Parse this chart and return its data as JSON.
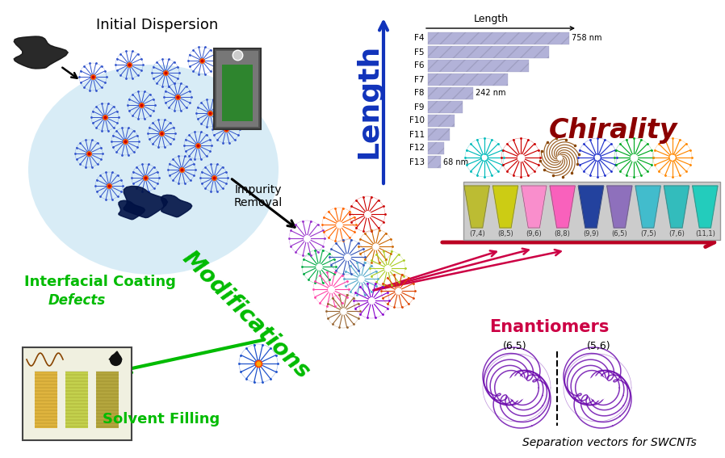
{
  "title": "Separation vectors for SWCNTs",
  "bg_color": "#ffffff",
  "length_label": "Length",
  "length_axis_label": "Length",
  "fractions": [
    "F4",
    "F5",
    "F6",
    "F7",
    "F8",
    "F9",
    "F10",
    "F11",
    "F12",
    "F13"
  ],
  "fraction_lengths": [
    758,
    650,
    540,
    430,
    242,
    185,
    145,
    115,
    88,
    68
  ],
  "fraction_annotations": {
    "F4": "758 nm",
    "F8": "242 nm",
    "F13": "68 nm"
  },
  "chirality_label": "Chirality",
  "chirality_color": "#8B0000",
  "chirality_species": [
    "(7,4)",
    "(8,5)",
    "(9,6)",
    "(8,8)",
    "(9,9)",
    "(6,5)",
    "(7,5)",
    "(7,6)",
    "(11,1)"
  ],
  "initial_dispersion_label": "Initial Dispersion",
  "impurity_removal_label": "Impurity\nRemoval",
  "modifications_label": "Modifications",
  "modifications_color": "#00BB00",
  "interfacial_coating_label": "Interfacial Coating",
  "defects_label": "Defects",
  "solvent_filling_label": "Solvent Filling",
  "enantiomers_label": "Enantiomers",
  "enantiomers_color": "#CC0044",
  "enantiomers_species": [
    "(6,5)",
    "(5,6)"
  ],
  "bar_color": "#9999CC",
  "length_arrow_color": "#1133BB",
  "chirality_arrow_color": "#BB0022",
  "dispersion_colors": [
    "#3355CC",
    "#3355CC",
    "#3355CC",
    "#3355CC",
    "#3355CC",
    "#3355CC",
    "#3355CC",
    "#3355CC",
    "#3355CC",
    "#3355CC",
    "#3355CC",
    "#3355CC"
  ],
  "center_colors": [
    "#9933CC",
    "#FF6600",
    "#CC0000",
    "#00AA44",
    "#3355BB",
    "#CC6600",
    "#FF44AA",
    "#55AACC",
    "#AACC22",
    "#996633",
    "#8800CC"
  ],
  "chirality_row_colors": [
    "#00BBBB",
    "#CC0000",
    "#884400",
    "#2233CC",
    "#00AA22",
    "#FF8800"
  ],
  "tube_colors_chirality": [
    "#CCCC00",
    "#CCBB00",
    "#FF88BB",
    "#FF55AA",
    "#113388",
    "#7755AA",
    "#33AABB",
    "#22AAAA",
    "#11BBAA"
  ],
  "enantiomer_color": "#6600AA"
}
